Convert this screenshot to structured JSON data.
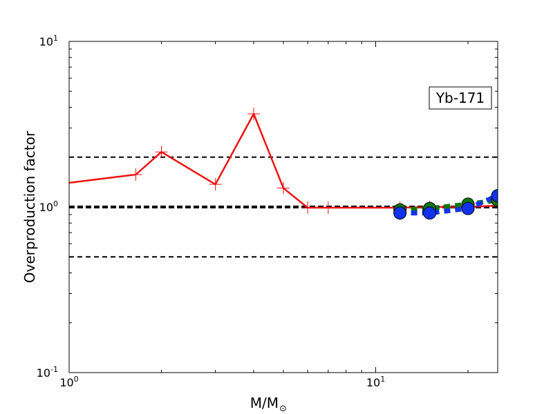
{
  "chart_data": {
    "type": "line",
    "title": "",
    "xlabel": "M/M",
    "xlabel_sub": "⊙",
    "ylabel": "Overproduction factor",
    "annotation": "Yb-171",
    "x_scale": "log",
    "y_scale": "log",
    "xlim": [
      1,
      25
    ],
    "ylim": [
      0.1,
      10
    ],
    "x_ticks": [
      {
        "value": 1,
        "base": "10",
        "exp": "0"
      },
      {
        "value": 10,
        "base": "10",
        "exp": "1"
      }
    ],
    "y_ticks": [
      {
        "value": 0.1,
        "base": "10",
        "exp": "-1"
      },
      {
        "value": 1,
        "base": "10",
        "exp": "0"
      },
      {
        "value": 10,
        "base": "10",
        "exp": "1"
      }
    ],
    "grid": false,
    "reference_lines": [
      {
        "y": 2.0,
        "style": "dashed",
        "weight": "thin",
        "color": "#000000"
      },
      {
        "y": 1.0,
        "style": "dashed",
        "weight": "thick",
        "color": "#000000"
      },
      {
        "y": 0.5,
        "style": "dashed",
        "weight": "thin",
        "color": "#000000"
      }
    ],
    "series": [
      {
        "style": "solid",
        "marker": "plus",
        "color": "#ee1111",
        "x": [
          1.0,
          1.65,
          2.0,
          3.0,
          4.0,
          5.0,
          6.0,
          7.0,
          12.0,
          15.0,
          20.0,
          25.0
        ],
        "y": [
          1.4,
          1.57,
          2.15,
          1.37,
          3.65,
          1.3,
          0.99,
          0.99,
          0.99,
          1.0,
          1.0,
          1.02
        ]
      },
      {
        "style": "dashed",
        "marker": "circle",
        "color": "#117711",
        "x": [
          12.0,
          15.0,
          20.0,
          25.0
        ],
        "y": [
          0.96,
          0.98,
          1.04,
          1.1
        ]
      },
      {
        "style": "dashed",
        "marker": "circle",
        "color": "#1133ee",
        "x": [
          12.0,
          15.0,
          20.0,
          25.0
        ],
        "y": [
          0.92,
          0.92,
          0.98,
          1.17
        ]
      }
    ]
  }
}
